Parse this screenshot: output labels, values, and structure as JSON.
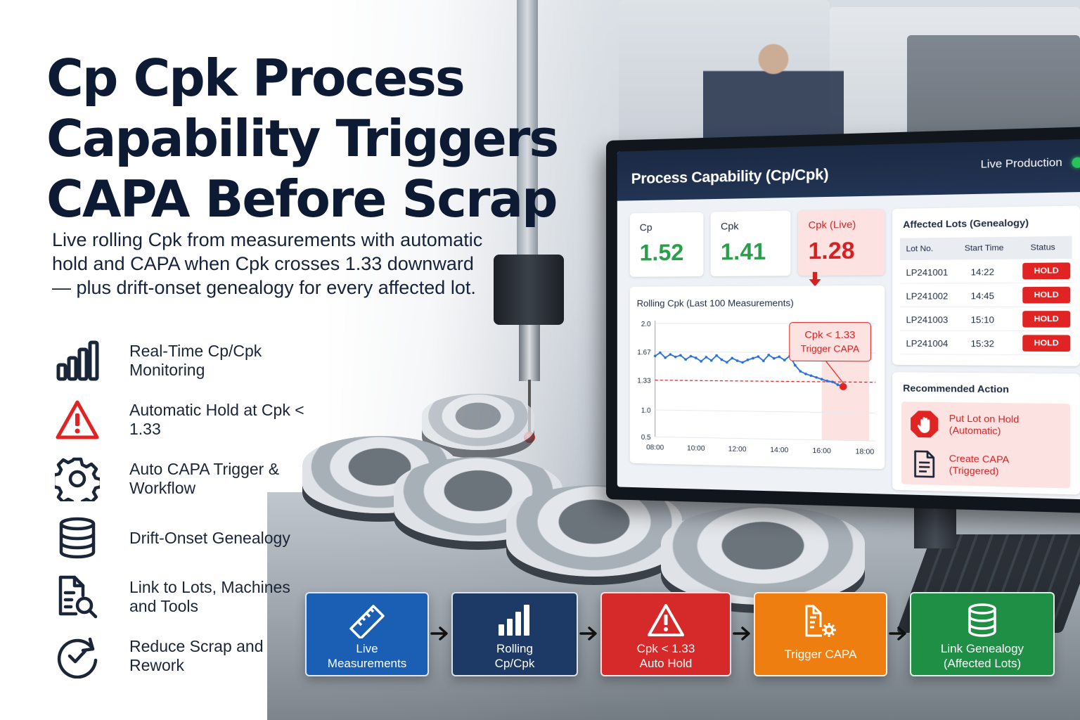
{
  "headline": "Cp Cpk Process Capability Triggers CAPA Before Scrap",
  "subheadline": "Live rolling Cpk from measurements with automatic hold and CAPA when Cpk crosses 1.33 downward — plus drift-onset genealogy for every affected lot.",
  "features": [
    {
      "icon": "bar-chart-icon",
      "label": "Real-Time Cp/Cpk Monitoring"
    },
    {
      "icon": "warning-triangle-icon",
      "label": "Automatic Hold at Cpk < 1.33"
    },
    {
      "icon": "gear-icon",
      "label": "Auto CAPA Trigger & Workflow"
    },
    {
      "icon": "database-icon",
      "label": "Drift-Onset Genealogy"
    },
    {
      "icon": "document-search-icon",
      "label": "Link to Lots, Machines and Tools"
    },
    {
      "icon": "check-circle-icon",
      "label": "Reduce Scrap and Rework"
    }
  ],
  "dashboard": {
    "title": "Process Capability (Cp/Cpk)",
    "live_status": "Live Production",
    "kpis": [
      {
        "label": "Cp",
        "value": "1.52"
      },
      {
        "label": "Cpk",
        "value": "1.41"
      },
      {
        "label": "Cpk (Live)",
        "value": "1.28",
        "trend_icon": "arrow-down-icon"
      }
    ],
    "chart_title": "Rolling Cpk (Last 100 Measurements)",
    "callout": {
      "line1": "Cpk < 1.33",
      "line2": "Trigger CAPA"
    },
    "lots_title": "Affected Lots (Genealogy)",
    "lots_headers": [
      "Lot No.",
      "Start Time",
      "Status"
    ],
    "lots": [
      {
        "lot": "LP241001",
        "time": "14:22",
        "status": "HOLD"
      },
      {
        "lot": "LP241002",
        "time": "14:45",
        "status": "HOLD"
      },
      {
        "lot": "LP241003",
        "time": "15:10",
        "status": "HOLD"
      },
      {
        "lot": "LP241004",
        "time": "15:32",
        "status": "HOLD"
      }
    ],
    "rec_title": "Recommended Action",
    "actions": [
      {
        "icon": "stop-hand-icon",
        "line1": "Put Lot on Hold",
        "line2": "(Automatic)"
      },
      {
        "icon": "document-icon",
        "line1": "Create CAPA",
        "line2": "(Triggered)"
      }
    ]
  },
  "chart_data": {
    "type": "line",
    "title": "Rolling Cpk (Last 100 Measurements)",
    "x_ticks": [
      "08:00",
      "10:00",
      "12:00",
      "14:00",
      "16:00",
      "18:00"
    ],
    "y_ticks": [
      "2.0",
      "1.67",
      "1.33",
      "1.0",
      "0.5"
    ],
    "threshold": 1.33,
    "x": [
      8.0,
      8.25,
      8.5,
      8.75,
      9.0,
      9.25,
      9.5,
      9.75,
      10.0,
      10.25,
      10.5,
      10.75,
      11.0,
      11.25,
      11.5,
      11.75,
      12.0,
      12.25,
      12.5,
      12.75,
      13.0,
      13.25,
      13.5,
      13.75,
      14.0,
      14.25,
      14.5,
      14.75,
      15.0,
      15.25,
      15.5,
      15.75,
      16.0,
      16.25,
      16.5,
      16.75,
      17.0
    ],
    "values": [
      1.62,
      1.66,
      1.6,
      1.64,
      1.61,
      1.63,
      1.58,
      1.62,
      1.6,
      1.56,
      1.61,
      1.57,
      1.63,
      1.58,
      1.55,
      1.6,
      1.57,
      1.55,
      1.58,
      1.6,
      1.62,
      1.57,
      1.64,
      1.6,
      1.62,
      1.58,
      1.63,
      1.52,
      1.45,
      1.42,
      1.4,
      1.38,
      1.36,
      1.34,
      1.33,
      1.3,
      1.28
    ],
    "shaded_region": [
      16.0,
      18.2
    ],
    "ylim": [
      0.5,
      2.0
    ],
    "colors": {
      "line": "#2a6fd6",
      "threshold": "#e02424",
      "alert": "#e02424",
      "shade": "#fde2e2"
    }
  },
  "workflow": [
    {
      "icon": "ruler-icon",
      "label1": "Live",
      "label2": "Measurements"
    },
    {
      "icon": "bar-chart-icon",
      "label1": "Rolling",
      "label2": "Cp/Cpk"
    },
    {
      "icon": "warning-triangle-icon",
      "label1": "Cpk < 1.33",
      "label2": "Auto Hold"
    },
    {
      "icon": "document-gear-icon",
      "label1": "Trigger CAPA",
      "label2": ""
    },
    {
      "icon": "database-icon",
      "label1": "Link Genealogy",
      "label2": "(Affected Lots)"
    }
  ],
  "colors": {
    "headline": "#0d1a33",
    "ok_green": "#2a9d4b",
    "alert_red": "#d42020",
    "blue": "#1b5fb4",
    "navy": "#1d3a66",
    "orange": "#ee7e0f",
    "green": "#1f8f45"
  }
}
